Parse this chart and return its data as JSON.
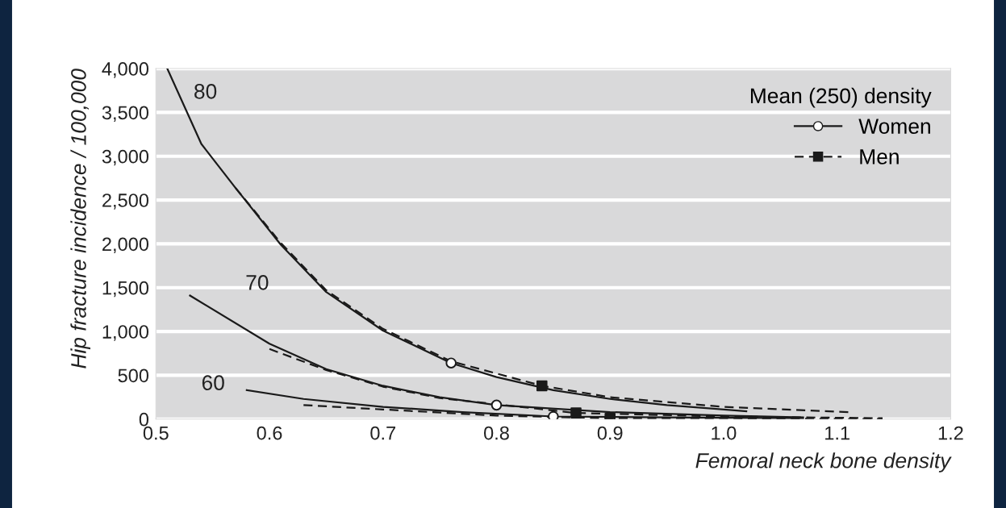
{
  "chart_data": {
    "type": "line",
    "xlabel": "Femoral neck bone density",
    "ylabel": "Hip fracture incidence / 100,000",
    "legend_title": "Mean (250) density",
    "legend": "top right",
    "grid": "y",
    "xlim": [
      0.5,
      1.2
    ],
    "xticks": [
      0.5,
      0.6,
      0.7,
      0.8,
      0.9,
      {
        "value": 1.0,
        "label": "1.0"
      },
      1.1,
      1.2
    ],
    "ylim": [
      0,
      4000
    ],
    "yticks": [
      {
        "value": 0,
        "label": "0"
      },
      {
        "value": 500,
        "label": "500"
      },
      {
        "value": 1000,
        "label": "1,000"
      },
      {
        "value": 1500,
        "label": "1,500"
      },
      {
        "value": 2000,
        "label": "2,000"
      },
      {
        "value": 2500,
        "label": "2,500"
      },
      {
        "value": 3000,
        "label": "3,000"
      },
      {
        "value": 3500,
        "label": "3,500"
      },
      {
        "value": 4000,
        "label": "4,000"
      }
    ],
    "annotations": [
      {
        "text": "80",
        "x": 0.51,
        "y": 4000
      },
      {
        "text": "70",
        "x": 0.53,
        "y": 1410
      },
      {
        "text": "60",
        "x": 0.58,
        "y": 330
      }
    ],
    "series": [
      {
        "color": "#1a1a1a",
        "line_style": "solid",
        "x": [
          0.51,
          0.54,
          0.57,
          0.61,
          0.65,
          0.7,
          0.76,
          0.8,
          0.85,
          0.9,
          0.95,
          1.02
        ],
        "values": [
          4000,
          3140,
          2640,
          1990,
          1450,
          1010,
          640,
          480,
          330,
          230,
          160,
          90
        ]
      },
      {
        "color": "#1a1a1a",
        "line_style": "dashed",
        "x": [
          0.57,
          0.61,
          0.65,
          0.7,
          0.76,
          0.84,
          0.9,
          1.0,
          1.11
        ],
        "values": [
          2640,
          2010,
          1470,
          1030,
          660,
          380,
          250,
          140,
          80
        ]
      },
      {
        "color": "#1a1a1a",
        "line_style": "solid",
        "x": [
          0.53,
          0.6,
          0.65,
          0.7,
          0.75,
          0.8,
          0.9,
          1.0,
          1.07
        ],
        "values": [
          1410,
          860,
          570,
          380,
          250,
          160,
          80,
          40,
          20
        ]
      },
      {
        "color": "#1a1a1a",
        "line_style": "dashed",
        "x": [
          0.6,
          0.65,
          0.7,
          0.75,
          0.87,
          1.0,
          1.14
        ],
        "values": [
          800,
          560,
          370,
          240,
          70,
          30,
          10
        ]
      },
      {
        "color": "#1a1a1a",
        "line_style": "solid",
        "x": [
          0.58,
          0.63,
          0.7,
          0.77,
          0.85,
          0.95,
          1.07
        ],
        "values": [
          330,
          230,
          140,
          80,
          30,
          20,
          10
        ]
      },
      {
        "color": "#1a1a1a",
        "line_style": "dashed",
        "x": [
          0.63,
          0.7,
          0.8,
          0.9,
          1.0,
          1.14
        ],
        "values": [
          160,
          110,
          40,
          10,
          10,
          0
        ]
      },
      {
        "name": "Women",
        "type": "scatter",
        "color": "#ffffff",
        "marker": "circle",
        "line_style": "solid",
        "x": [
          0.76,
          0.8,
          0.85
        ],
        "values": [
          640,
          160,
          30
        ]
      },
      {
        "name": "Men",
        "type": "scatter",
        "color": "#1a1a1a",
        "marker": "square",
        "line_style": "dashed",
        "x": [
          0.84,
          0.87,
          0.9
        ],
        "values": [
          380,
          70,
          10
        ]
      }
    ]
  }
}
